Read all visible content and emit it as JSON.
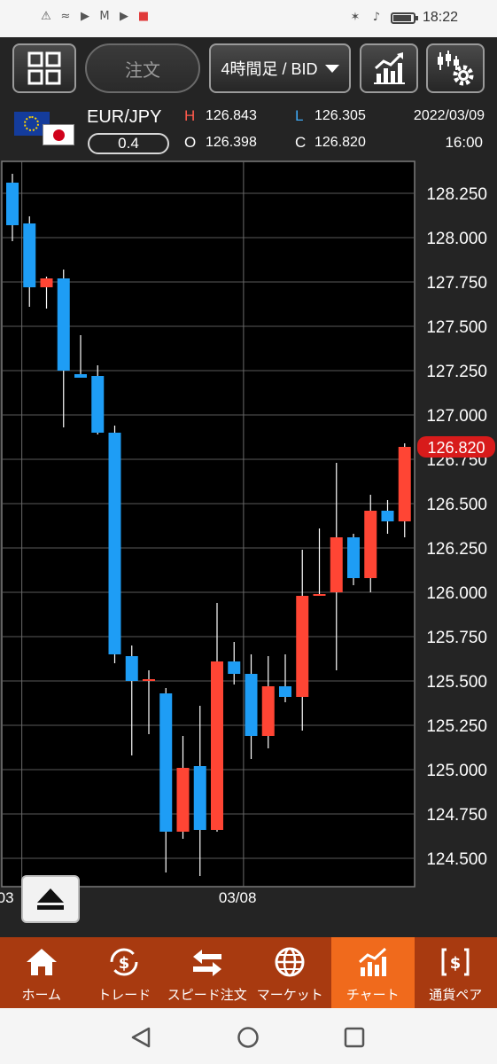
{
  "status_bar": {
    "time": "18:22",
    "left_icons": [
      "alert-icon",
      "wifi-icon",
      "youtube-icon",
      "gmail-icon",
      "youtube-icon",
      "gift-icon"
    ],
    "right_icons": [
      "bluetooth-icon",
      "mute-icon",
      "battery-icon"
    ]
  },
  "toolbar": {
    "order_label": "注文",
    "period_label": "4時間足 / BID",
    "menu_icon": "grid-icon",
    "chart_type_icon": "chart-icon",
    "settings_icon": "indicator-settings-icon"
  },
  "quote": {
    "pair": "EUR/JPY",
    "spread": "0.4",
    "high_label": "H",
    "high": "126.843",
    "low_label": "L",
    "low": "126.305",
    "open_label": "O",
    "open": "126.398",
    "close_label": "C",
    "close": "126.820",
    "date": "2022/03/09",
    "time": "16:00"
  },
  "chart_data": {
    "type": "candlestick",
    "y_ticks": [
      "128.250",
      "128.000",
      "127.750",
      "127.500",
      "127.250",
      "127.000",
      "126.750",
      "126.500",
      "126.250",
      "126.000",
      "125.750",
      "125.500",
      "125.250",
      "125.000",
      "124.750",
      "124.500"
    ],
    "ylim": [
      124.4,
      128.3
    ],
    "x_labels": [
      {
        "label": "03",
        "index": 0.5
      },
      {
        "label": "03/08",
        "index": 13.5
      }
    ],
    "current_price": "126.820",
    "colors": {
      "up": "#ff4534",
      "down": "#1e9df5",
      "grid": "#5a5a5a",
      "current": "#d81b1b"
    },
    "candles": [
      {
        "o": 128.31,
        "h": 128.36,
        "l": 127.98,
        "c": 128.07
      },
      {
        "o": 128.08,
        "h": 128.12,
        "l": 127.61,
        "c": 127.72
      },
      {
        "o": 127.72,
        "h": 127.78,
        "l": 127.6,
        "c": 127.77
      },
      {
        "o": 127.77,
        "h": 127.82,
        "l": 126.93,
        "c": 127.25
      },
      {
        "o": 127.23,
        "h": 127.45,
        "l": 127.21,
        "c": 127.21
      },
      {
        "o": 127.22,
        "h": 127.28,
        "l": 126.89,
        "c": 126.9
      },
      {
        "o": 126.9,
        "h": 126.94,
        "l": 125.6,
        "c": 125.65
      },
      {
        "o": 125.64,
        "h": 125.7,
        "l": 125.08,
        "c": 125.5
      },
      {
        "o": 125.5,
        "h": 125.56,
        "l": 125.2,
        "c": 125.51
      },
      {
        "o": 125.43,
        "h": 125.46,
        "l": 124.42,
        "c": 124.65
      },
      {
        "o": 124.65,
        "h": 125.19,
        "l": 124.61,
        "c": 125.01
      },
      {
        "o": 125.02,
        "h": 125.36,
        "l": 124.4,
        "c": 124.66
      },
      {
        "o": 124.66,
        "h": 125.94,
        "l": 124.65,
        "c": 125.61
      },
      {
        "o": 125.61,
        "h": 125.72,
        "l": 125.48,
        "c": 125.54
      },
      {
        "o": 125.54,
        "h": 125.65,
        "l": 125.06,
        "c": 125.19
      },
      {
        "o": 125.19,
        "h": 125.64,
        "l": 125.12,
        "c": 125.47
      },
      {
        "o": 125.47,
        "h": 125.65,
        "l": 125.38,
        "c": 125.41
      },
      {
        "o": 125.41,
        "h": 126.24,
        "l": 125.22,
        "c": 125.98
      },
      {
        "o": 125.98,
        "h": 126.36,
        "l": 125.98,
        "c": 125.99
      },
      {
        "o": 126.0,
        "h": 126.73,
        "l": 125.56,
        "c": 126.31
      },
      {
        "o": 126.31,
        "h": 126.33,
        "l": 126.04,
        "c": 126.08
      },
      {
        "o": 126.08,
        "h": 126.55,
        "l": 126.0,
        "c": 126.46
      },
      {
        "o": 126.46,
        "h": 126.52,
        "l": 126.33,
        "c": 126.4
      },
      {
        "o": 126.4,
        "h": 126.84,
        "l": 126.31,
        "c": 126.82
      }
    ]
  },
  "bottom_nav": [
    {
      "label": "ホーム",
      "icon": "home-icon",
      "active": false
    },
    {
      "label": "トレード",
      "icon": "trade-icon",
      "active": false
    },
    {
      "label": "スピード注文",
      "icon": "speed-order-icon",
      "active": false
    },
    {
      "label": "マーケット",
      "icon": "globe-icon",
      "active": false
    },
    {
      "label": "チャート",
      "icon": "chart-icon",
      "active": true
    },
    {
      "label": "通貨ペア",
      "icon": "currency-pair-icon",
      "active": false
    }
  ],
  "system_nav": {
    "icons": [
      "back-icon",
      "home-icon",
      "recents-icon"
    ]
  },
  "battery_level": 0.9
}
